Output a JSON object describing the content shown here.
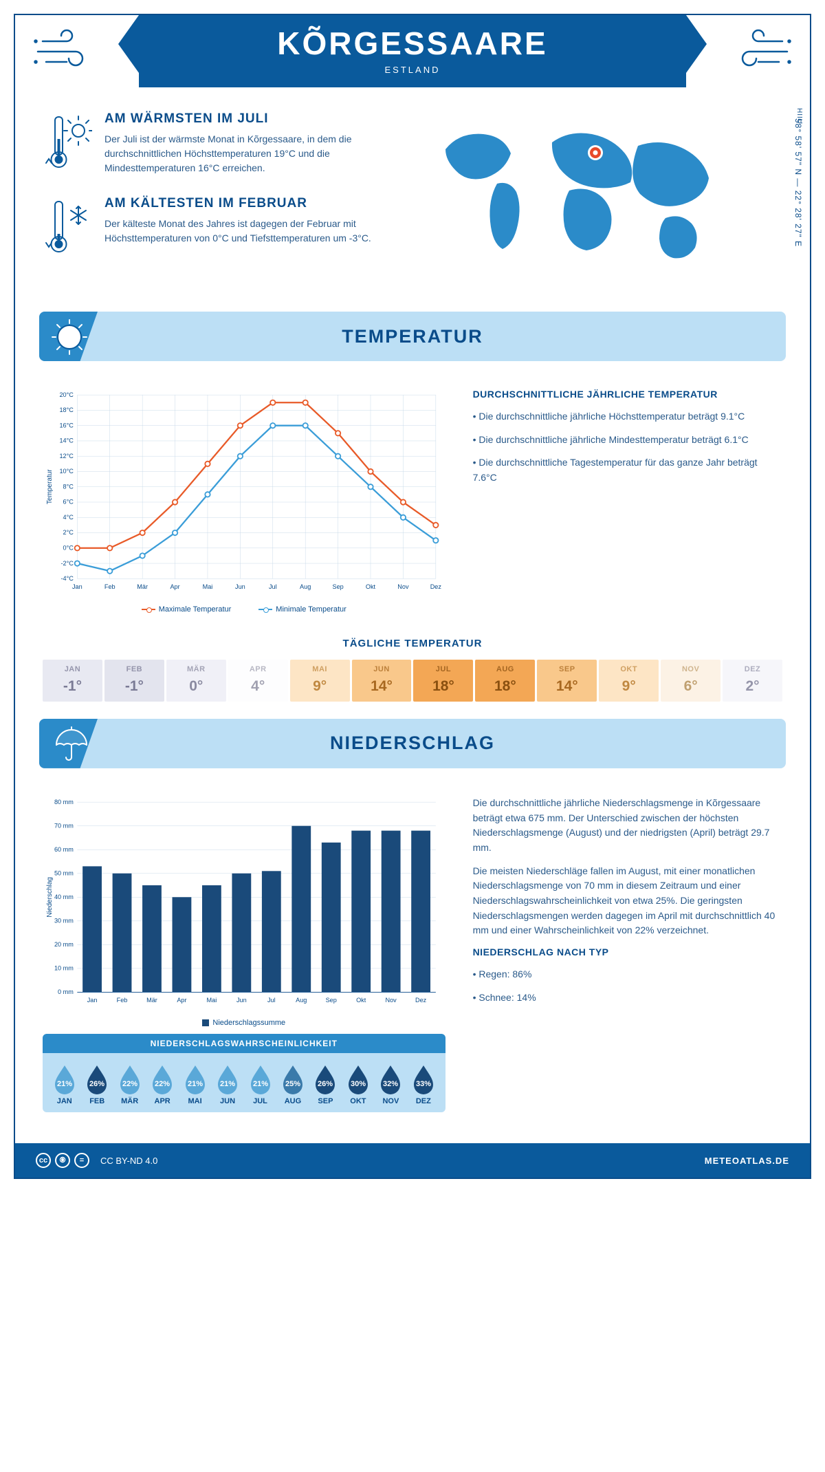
{
  "header": {
    "title": "KÕRGESSAARE",
    "subtitle": "ESTLAND",
    "coordinates": "58° 58' 57\" N — 22° 28' 27\" E",
    "region": "HIIU"
  },
  "facts": {
    "warm": {
      "title": "AM WÄRMSTEN IM JULI",
      "text": "Der Juli ist der wärmste Monat in Kõrgessaare, in dem die durchschnittlichen Höchsttemperaturen 19°C und die Mindesttemperaturen 16°C erreichen."
    },
    "cold": {
      "title": "AM KÄLTESTEN IM FEBRUAR",
      "text": "Der kälteste Monat des Jahres ist dagegen der Februar mit Höchsttemperaturen von 0°C und Tiefsttemperaturen um -3°C."
    }
  },
  "temperature_section": {
    "title": "TEMPERATUR",
    "chart": {
      "months": [
        "Jan",
        "Feb",
        "Mär",
        "Apr",
        "Mai",
        "Jun",
        "Jul",
        "Aug",
        "Sep",
        "Okt",
        "Nov",
        "Dez"
      ],
      "max_series": [
        0,
        0,
        2,
        6,
        11,
        16,
        19,
        19,
        15,
        10,
        6,
        3
      ],
      "min_series": [
        -2,
        -3,
        -1,
        2,
        7,
        12,
        16,
        16,
        12,
        8,
        4,
        1
      ],
      "ylabel": "Temperatur",
      "ymin": -4,
      "ymax": 20,
      "ystep": 2,
      "max_color": "#e85a28",
      "min_color": "#3a9dd8",
      "grid_color": "#c5d8e8",
      "legend_max": "Maximale Temperatur",
      "legend_min": "Minimale Temperatur"
    },
    "sidebar": {
      "heading": "DURCHSCHNITTLICHE JÄHRLICHE TEMPERATUR",
      "bullets": [
        "Die durchschnittliche jährliche Höchsttemperatur beträgt 9.1°C",
        "Die durchschnittliche jährliche Mindesttemperatur beträgt 6.1°C",
        "Die durchschnittliche Tagestemperatur für das ganze Jahr beträgt 7.6°C"
      ]
    },
    "daily_heading": "TÄGLICHE TEMPERATUR",
    "daily": [
      {
        "m": "JAN",
        "v": "-1°",
        "bg": "#e8e9f2",
        "fg": "#7a7a95"
      },
      {
        "m": "FEB",
        "v": "-1°",
        "bg": "#e3e4ee",
        "fg": "#7a7a95"
      },
      {
        "m": "MÄR",
        "v": "0°",
        "bg": "#f0f0f7",
        "fg": "#8a8aa0"
      },
      {
        "m": "APR",
        "v": "4°",
        "bg": "#fdfdfe",
        "fg": "#a0a0b0"
      },
      {
        "m": "MAI",
        "v": "9°",
        "bg": "#fde5c5",
        "fg": "#c08840"
      },
      {
        "m": "JUN",
        "v": "14°",
        "bg": "#f9c88b",
        "fg": "#a86820"
      },
      {
        "m": "JUL",
        "v": "18°",
        "bg": "#f3a755",
        "fg": "#8a5010"
      },
      {
        "m": "AUG",
        "v": "18°",
        "bg": "#f3a755",
        "fg": "#8a5010"
      },
      {
        "m": "SEP",
        "v": "14°",
        "bg": "#f9c88b",
        "fg": "#a86820"
      },
      {
        "m": "OKT",
        "v": "9°",
        "bg": "#fde5c5",
        "fg": "#c08840"
      },
      {
        "m": "NOV",
        "v": "6°",
        "bg": "#fcf2e5",
        "fg": "#c0a070"
      },
      {
        "m": "DEZ",
        "v": "2°",
        "bg": "#f6f6fa",
        "fg": "#9595aa"
      }
    ]
  },
  "precipitation_section": {
    "title": "NIEDERSCHLAG",
    "chart": {
      "months": [
        "Jan",
        "Feb",
        "Mär",
        "Apr",
        "Mai",
        "Jun",
        "Jul",
        "Aug",
        "Sep",
        "Okt",
        "Nov",
        "Dez"
      ],
      "values": [
        53,
        50,
        45,
        40,
        45,
        50,
        51,
        70,
        63,
        68,
        68,
        68
      ],
      "ylabel": "Niederschlag",
      "ymax": 80,
      "ystep": 10,
      "bar_color": "#1a4a7a",
      "legend": "Niederschlagssumme"
    },
    "sidebar": {
      "p1": "Die durchschnittliche jährliche Niederschlagsmenge in Kõrgessaare beträgt etwa 675 mm. Der Unterschied zwischen der höchsten Niederschlagsmenge (August) und der niedrigsten (April) beträgt 29.7 mm.",
      "p2": "Die meisten Niederschläge fallen im August, mit einer monatlichen Niederschlagsmenge von 70 mm in diesem Zeitraum und einer Niederschlagswahrscheinlichkeit von etwa 25%. Die geringsten Niederschlagsmengen werden dagegen im April mit durchschnittlich 40 mm und einer Wahrscheinlichkeit von 22% verzeichnet.",
      "type_heading": "NIEDERSCHLAG NACH TYP",
      "types": [
        "Regen: 86%",
        "Schnee: 14%"
      ]
    },
    "probability": {
      "heading": "NIEDERSCHLAGSWAHRSCHEINLICHKEIT",
      "items": [
        {
          "m": "JAN",
          "v": "21%",
          "c": "#5aa8d8"
        },
        {
          "m": "FEB",
          "v": "26%",
          "c": "#1a4a7a"
        },
        {
          "m": "MÄR",
          "v": "22%",
          "c": "#5aa8d8"
        },
        {
          "m": "APR",
          "v": "22%",
          "c": "#5aa8d8"
        },
        {
          "m": "MAI",
          "v": "21%",
          "c": "#5aa8d8"
        },
        {
          "m": "JUN",
          "v": "21%",
          "c": "#5aa8d8"
        },
        {
          "m": "JUL",
          "v": "21%",
          "c": "#5aa8d8"
        },
        {
          "m": "AUG",
          "v": "25%",
          "c": "#3a7aaa"
        },
        {
          "m": "SEP",
          "v": "26%",
          "c": "#1a4a7a"
        },
        {
          "m": "OKT",
          "v": "30%",
          "c": "#1a4a7a"
        },
        {
          "m": "NOV",
          "v": "32%",
          "c": "#1a4a7a"
        },
        {
          "m": "DEZ",
          "v": "33%",
          "c": "#1a4a7a"
        }
      ]
    }
  },
  "footer": {
    "license": "CC BY-ND 4.0",
    "site": "METEOATLAS.DE"
  }
}
